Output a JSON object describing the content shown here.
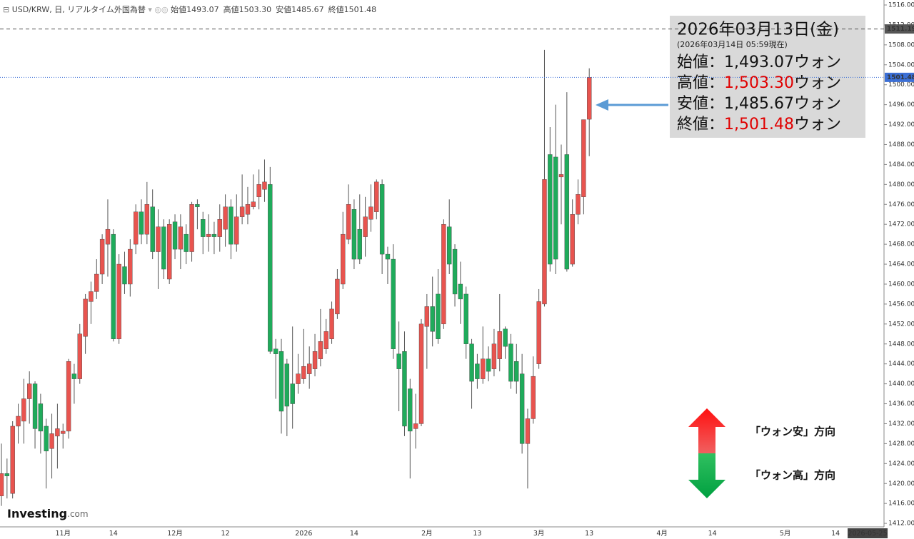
{
  "header": {
    "title": "USD/KRW, 日, リアルタイム外国為替",
    "ohlc": [
      {
        "label": "始値",
        "value": "1493.07"
      },
      {
        "label": "高値",
        "value": "1503.30"
      },
      {
        "label": "安値",
        "value": "1485.67"
      },
      {
        "label": "終値",
        "value": "1501.48"
      }
    ]
  },
  "logo": {
    "name": "Investing",
    "suffix": ".com"
  },
  "chart_data": {
    "type": "candlestick",
    "categories": [
      null,
      null,
      null,
      null,
      null,
      null,
      null,
      null,
      null,
      null,
      null,
      "11月",
      null,
      null,
      null,
      null,
      null,
      null,
      null,
      null,
      "14",
      null,
      null,
      null,
      null,
      null,
      null,
      null,
      null,
      null,
      null,
      "12月",
      null,
      null,
      null,
      null,
      null,
      null,
      null,
      null,
      "12",
      null,
      null,
      null,
      null,
      null,
      null,
      null,
      null,
      null,
      null,
      null,
      null,
      null,
      "2026",
      null,
      null,
      null,
      null,
      null,
      null,
      null,
      null,
      "14",
      null,
      null,
      null,
      null,
      null,
      null,
      null,
      null,
      null,
      null,
      null,
      null,
      "2月",
      null,
      null,
      null,
      null,
      null,
      null,
      null,
      null,
      "13",
      null,
      null,
      null,
      null,
      null,
      null,
      null,
      null,
      null,
      null,
      "3月",
      null,
      null,
      null,
      null,
      null,
      null,
      null,
      null,
      "13",
      null,
      null,
      null,
      null,
      null,
      null,
      null,
      null,
      null,
      null,
      null,
      null,
      "4月",
      null,
      null,
      null,
      null,
      null,
      null,
      null,
      null,
      "14",
      null,
      null,
      null,
      null,
      null,
      null,
      null,
      null,
      null,
      null,
      null,
      null,
      "5月",
      null,
      null,
      null,
      null,
      null,
      null,
      null,
      null,
      "14",
      null,
      null,
      null,
      null,
      null,
      null,
      "2026-05-25"
    ],
    "series": [
      {
        "open": [
          1417.5,
          1422,
          1418,
          1431.5,
          1432.5,
          1437,
          1440,
          1436,
          1431.5,
          1427,
          1429.5,
          1430,
          1430.5,
          1442,
          1441,
          1449.5,
          1456.5,
          1458.5,
          1462,
          1468,
          1470,
          1449,
          1463.5,
          1460,
          1468,
          1474.5,
          1470,
          1475.5,
          1466.5,
          1471.5,
          1461,
          1472.5,
          1467,
          1470,
          1466.5,
          1476,
          1473,
          1469.5,
          1470,
          1469.5,
          1471,
          1475.5,
          1468,
          1473.5,
          1474,
          1475.5,
          1477.5,
          1479,
          1480,
          1447,
          1446.5,
          1444,
          1440,
          1440,
          1441,
          1442,
          1443,
          1445,
          1447,
          1449,
          1454,
          1460,
          1469,
          1475,
          1471,
          1469.5,
          1473,
          1474.5,
          1480,
          1466,
          1465,
          1446,
          1446.5,
          1439,
          1431,
          1432,
          1451.5,
          1455.5,
          1458,
          1452,
          1471.5,
          1467,
          1460,
          1458,
          1448,
          1444,
          1441,
          1445,
          1443,
          1445,
          1451,
          1448,
          1444.5,
          1442,
          1428,
          1433,
          1444,
          1456,
          1486,
          1485.5,
          1481.5,
          1486,
          1464,
          1474,
          1477.5,
          1493.07,
          null,
          null,
          null,
          null,
          null,
          null,
          null,
          null,
          null,
          null,
          null,
          null,
          null,
          null,
          null,
          null,
          null,
          null,
          null,
          null,
          null,
          null,
          null,
          null,
          null,
          null,
          null,
          null,
          null,
          null,
          null,
          null,
          null,
          null,
          null,
          null,
          null,
          null,
          null,
          null,
          null,
          null,
          null,
          null,
          null,
          null,
          null,
          null,
          null,
          null,
          null
        ],
        "high": [
          1428,
          1425,
          1432.5,
          1436,
          1441,
          1442.5,
          1440.5,
          1438,
          1433,
          1434,
          1436,
          1432,
          1445,
          1444,
          1452,
          1458,
          1460.5,
          1465,
          1470,
          1477,
          1471,
          1466,
          1466.5,
          1469,
          1476,
          1477,
          1480.5,
          1479,
          1475,
          1473,
          1473,
          1474,
          1474,
          1472,
          1476.5,
          1477,
          1474.5,
          1474,
          1472.5,
          1476,
          1478,
          1477,
          1478,
          1482,
          1479.5,
          1482,
          1483,
          1485,
          1483.5,
          1449,
          1449,
          1445,
          1451.5,
          1446,
          1451,
          1447.5,
          1450,
          1455,
          1453,
          1456.5,
          1463,
          1474.5,
          1480,
          1477,
          1478,
          1477.5,
          1480,
          1481,
          1481,
          1467.5,
          1468,
          1452.5,
          1450.5,
          1441,
          1438,
          1453,
          1458,
          1461.5,
          1463,
          1473,
          1477,
          1468,
          1464.5,
          1459.5,
          1449,
          1446,
          1451.5,
          1447.5,
          1451,
          1458,
          1451.5,
          1450,
          1448,
          1446,
          1435,
          1445.5,
          1459,
          1507,
          1491.5,
          1496,
          1488,
          1498.5,
          1477,
          1481,
          1493,
          1503.3,
          null,
          null,
          null,
          null,
          null,
          null,
          null,
          null,
          null,
          null,
          null,
          null,
          null,
          null,
          null,
          null,
          null,
          null,
          null,
          null,
          null,
          null,
          null,
          null,
          null,
          null,
          null,
          null,
          null,
          null,
          null,
          null,
          null,
          null,
          null,
          null,
          null,
          null,
          null,
          null,
          null,
          null,
          null,
          null,
          null,
          null,
          null,
          null,
          null,
          null,
          null
        ],
        "low": [
          1415.5,
          1417,
          1417,
          1428,
          1428,
          1432,
          1427,
          1426,
          1419,
          1421,
          1423,
          1427,
          1429,
          1436,
          1440,
          1446,
          1452,
          1457,
          1460,
          1461.5,
          1448.5,
          1448,
          1458,
          1457.5,
          1466,
          1468,
          1468,
          1465,
          1459,
          1461,
          1460,
          1465,
          1463,
          1464,
          1464.5,
          1471,
          1466,
          1466.5,
          1466,
          1466.5,
          1467.5,
          1465,
          1466.5,
          1472,
          1472,
          1475,
          1475,
          1476.5,
          1446,
          1437,
          1430,
          1429.5,
          1431,
          1438,
          1440,
          1439,
          1441.5,
          1443.5,
          1446,
          1448,
          1453,
          1459,
          1468,
          1463,
          1464,
          1465.5,
          1470.5,
          1473,
          1462,
          1460,
          1445,
          1434.5,
          1429.5,
          1421,
          1427,
          1431.5,
          1443,
          1447.5,
          1448,
          1451,
          1462,
          1455.5,
          1452,
          1445,
          1435,
          1439,
          1440,
          1440.5,
          1441.5,
          1442.5,
          1445,
          1439,
          1438,
          1426,
          1419,
          1432,
          1443,
          1455.5,
          1462.5,
          1462,
          1472,
          1462.5,
          1463.5,
          1472,
          1474,
          1485.67,
          null,
          null,
          null,
          null,
          null,
          null,
          null,
          null,
          null,
          null,
          null,
          null,
          null,
          null,
          null,
          null,
          null,
          null,
          null,
          null,
          null,
          null,
          null,
          null,
          null,
          null,
          null,
          null,
          null,
          null,
          null,
          null,
          null,
          null,
          null,
          null,
          null,
          null,
          null,
          null,
          null,
          null,
          null,
          null,
          null,
          null,
          null,
          null,
          null,
          null,
          null
        ],
        "close": [
          1422,
          1421.5,
          1431.5,
          1433.5,
          1437,
          1440,
          1431,
          1430.5,
          1426.5,
          1430,
          1431,
          1430.5,
          1444.5,
          1441,
          1450,
          1457,
          1458.5,
          1462,
          1469,
          1471,
          1449,
          1464,
          1460,
          1467,
          1474.5,
          1470,
          1476,
          1466.5,
          1471.5,
          1463,
          1472,
          1467,
          1471.5,
          1466.5,
          1476,
          1475.5,
          1469.5,
          1470,
          1469.5,
          1473,
          1475.5,
          1468,
          1473.5,
          1475.5,
          1476,
          1476.5,
          1480,
          1480.5,
          1446.5,
          1446,
          1434.5,
          1435.5,
          1436,
          1442,
          1443.5,
          1444,
          1446.5,
          1448.5,
          1450.5,
          1455,
          1461,
          1470,
          1476,
          1465,
          1465,
          1473.5,
          1475.5,
          1480.5,
          1466,
          1465,
          1447,
          1443,
          1431.5,
          1430.5,
          1432,
          1452,
          1455.5,
          1450.5,
          1449,
          1472,
          1464,
          1458,
          1457,
          1448,
          1440.5,
          1441,
          1445,
          1442.5,
          1448,
          1450.5,
          1447.5,
          1440.5,
          1440.5,
          1428,
          1433,
          1441.5,
          1456.5,
          1481,
          1464,
          1465,
          1482,
          1463,
          1474,
          1478,
          1493,
          1501.48,
          null,
          null,
          null,
          null,
          null,
          null,
          null,
          null,
          null,
          null,
          null,
          null,
          null,
          null,
          null,
          null,
          null,
          null,
          null,
          null,
          null,
          null,
          null,
          null,
          null,
          null,
          null,
          null,
          null,
          null,
          null,
          null,
          null,
          null,
          null,
          null,
          null,
          null,
          null,
          null,
          null,
          null,
          null,
          null,
          null,
          null,
          null,
          null,
          null,
          null,
          null
        ]
      }
    ],
    "up_color": "#e8544f",
    "down_color": "#1fab5b",
    "ylim": [
      1411.3,
      1517
    ],
    "yticks": [
      {
        "value": 1412,
        "label": "1412.00"
      },
      {
        "value": 1416,
        "label": "1416.00"
      },
      {
        "value": 1420,
        "label": "1420.00"
      },
      {
        "value": 1424,
        "label": "1424.00"
      },
      {
        "value": 1428,
        "label": "1428.00"
      },
      {
        "value": 1432,
        "label": "1432.00"
      },
      {
        "value": 1436,
        "label": "1436.00"
      },
      {
        "value": 1440,
        "label": "1440.00"
      },
      {
        "value": 1444,
        "label": "1444.00"
      },
      {
        "value": 1448,
        "label": "1448.00"
      },
      {
        "value": 1452,
        "label": "1452.00"
      },
      {
        "value": 1456,
        "label": "1456.00"
      },
      {
        "value": 1460,
        "label": "1460.00"
      },
      {
        "value": 1464,
        "label": "1464.00"
      },
      {
        "value": 1468,
        "label": "1468.00"
      },
      {
        "value": 1472,
        "label": "1472.00"
      },
      {
        "value": 1476,
        "label": "1476.00"
      },
      {
        "value": 1480,
        "label": "1480.00"
      },
      {
        "value": 1484,
        "label": "1484.00"
      },
      {
        "value": 1488,
        "label": "1488.00"
      },
      {
        "value": 1492,
        "label": "1492.00"
      },
      {
        "value": 1496,
        "label": "1496.00"
      },
      {
        "value": 1500,
        "label": "1500.00"
      },
      {
        "value": 1504,
        "label": "1504.00"
      },
      {
        "value": 1508,
        "label": "1508.00"
      },
      {
        "value": 1512,
        "label": "1512.00"
      },
      {
        "value": 1516,
        "label": "1516.00"
      }
    ],
    "price_lines": [
      {
        "value": 1511.19,
        "color": "#555555",
        "dash": "5 4"
      },
      {
        "value": 1501.48,
        "color": "#3b6fd6",
        "dash": "1 2"
      }
    ],
    "annotation": {
      "date": "2026年03月13日(金)",
      "asof": "(2026年03月14日 05:59現在)",
      "rows": [
        {
          "label": "始値：",
          "value": "1,493.07",
          "unit": "ウォン",
          "highlight": false
        },
        {
          "label": "高値：",
          "value": "1,503.30",
          "unit": "ウォン",
          "highlight": true
        },
        {
          "label": "安値：",
          "value": "1,485.67",
          "unit": "ウォン",
          "highlight": false
        },
        {
          "label": "終値：",
          "value": "1,501.48",
          "unit": "ウォン",
          "highlight": true
        }
      ],
      "highlight_color": "#e00000"
    },
    "direction_legend": [
      {
        "label": "「ウォン安」方向"
      },
      {
        "label": "「ウォン高」方向"
      }
    ]
  }
}
